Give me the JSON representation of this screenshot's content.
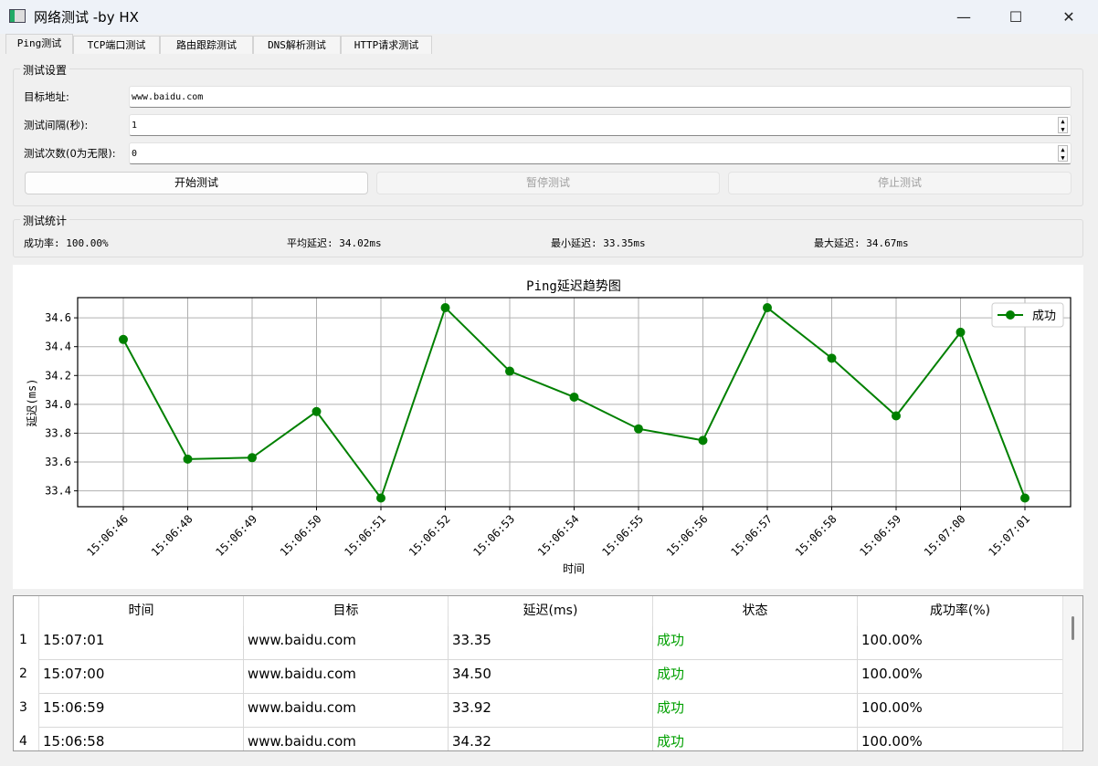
{
  "window": {
    "title": "网络测试 -by HX",
    "minimize": "—",
    "maximize": "☐",
    "close": "✕"
  },
  "tabs": [
    {
      "label": "Ping测试"
    },
    {
      "label": "TCP端口测试"
    },
    {
      "label": "路由跟踪测试"
    },
    {
      "label": "DNS解析测试"
    },
    {
      "label": "HTTP请求测试"
    }
  ],
  "settings": {
    "group_title": "测试设置",
    "target_label": "目标地址:",
    "target_value": "www.baidu.com",
    "interval_label": "测试间隔(秒):",
    "interval_value": "1",
    "count_label": "测试次数(0为无限):",
    "count_value": "0",
    "start_button": "开始测试",
    "pause_button": "暂停测试",
    "stop_button": "停止测试"
  },
  "stats": {
    "group_title": "测试统计",
    "success_rate": "成功率: 100.00%",
    "avg": "平均延迟: 34.02ms",
    "min": "最小延迟: 33.35ms",
    "max": "最大延迟: 34.67ms"
  },
  "chart_data": {
    "type": "line",
    "title": "Ping延迟趋势图",
    "xlabel": "时间",
    "ylabel": "延迟(ms)",
    "categories": [
      "15:06:46",
      "15:06:48",
      "15:06:49",
      "15:06:50",
      "15:06:51",
      "15:06:52",
      "15:06:53",
      "15:06:54",
      "15:06:55",
      "15:06:56",
      "15:06:57",
      "15:06:58",
      "15:06:59",
      "15:07:00",
      "15:07:01"
    ],
    "series": [
      {
        "name": "成功",
        "color": "#008000",
        "values": [
          34.45,
          33.62,
          33.63,
          33.95,
          33.35,
          34.67,
          34.23,
          34.05,
          33.83,
          33.75,
          34.67,
          34.32,
          33.92,
          34.5,
          33.35
        ]
      }
    ],
    "yticks": [
      "33.4",
      "33.6",
      "33.8",
      "34.0",
      "34.2",
      "34.4",
      "34.6"
    ],
    "ylim": [
      33.29,
      34.74
    ],
    "grid": true,
    "legend": "top-right"
  },
  "table": {
    "headers": [
      "时间",
      "目标",
      "延迟(ms)",
      "状态",
      "成功率(%)"
    ],
    "status_color": "#00a000",
    "rows": [
      {
        "n": "1",
        "cells": [
          "15:07:01",
          "www.baidu.com",
          "33.35",
          "成功",
          "100.00%"
        ]
      },
      {
        "n": "2",
        "cells": [
          "15:07:00",
          "www.baidu.com",
          "34.50",
          "成功",
          "100.00%"
        ]
      },
      {
        "n": "3",
        "cells": [
          "15:06:59",
          "www.baidu.com",
          "33.92",
          "成功",
          "100.00%"
        ]
      },
      {
        "n": "4",
        "cells": [
          "15:06:58",
          "www.baidu.com",
          "34.32",
          "成功",
          "100.00%"
        ]
      }
    ]
  }
}
